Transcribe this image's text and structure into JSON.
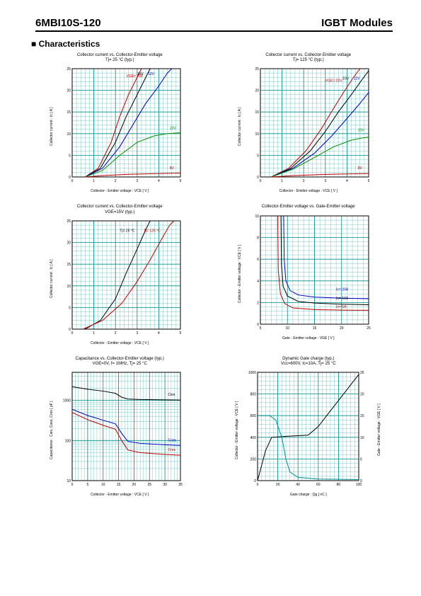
{
  "header": {
    "part": "6MBI10S-120",
    "module": "IGBT Modules"
  },
  "section": "■ Characteristics",
  "plot": {
    "w": 195,
    "h": 175
  },
  "colors": {
    "red": "#c00000",
    "blue": "#0000c0",
    "black": "#000000",
    "green": "#009000",
    "teal": "#009090"
  },
  "charts": [
    {
      "id": "c1",
      "title": "Collector current  vs.  Collector-Emitter voltage",
      "subtitle": "Tj= 25 °C  (typ.)",
      "xlabel": "Collector - Emitter voltage : VCE  [ V ]",
      "ylabel": "Collector current : Ic  [ A ]",
      "xlim": [
        0,
        5
      ],
      "ylim": [
        0,
        25
      ],
      "xmaj": 1,
      "ymaj": 5,
      "xmin": 0.2,
      "ymin": 1,
      "series": [
        {
          "c": "red",
          "pts": [
            [
              0.6,
              0
            ],
            [
              1.2,
              2
            ],
            [
              1.8,
              8
            ],
            [
              2.2,
              14
            ],
            [
              2.6,
              19
            ],
            [
              3.0,
              23
            ],
            [
              3.2,
              25
            ]
          ],
          "lab": "VGE= 20V",
          "lx": 2.5,
          "ly": 23
        },
        {
          "c": "black",
          "pts": [
            [
              0.6,
              0
            ],
            [
              1.3,
              2
            ],
            [
              2.0,
              8
            ],
            [
              2.5,
              14
            ],
            [
              3.0,
              19
            ],
            [
              3.4,
              23
            ],
            [
              3.6,
              25
            ]
          ],
          "lab": "15V",
          "lx": 3.0,
          "ly": 23.5
        },
        {
          "c": "blue",
          "pts": [
            [
              0.6,
              0
            ],
            [
              1.4,
              2
            ],
            [
              2.2,
              7
            ],
            [
              2.8,
              12
            ],
            [
              3.4,
              17
            ],
            [
              4.0,
              21
            ],
            [
              4.4,
              24
            ],
            [
              4.6,
              25
            ]
          ],
          "lab": "12V",
          "lx": 3.5,
          "ly": 23.5
        },
        {
          "c": "green",
          "pts": [
            [
              0.6,
              0
            ],
            [
              1.4,
              1.5
            ],
            [
              2.2,
              5
            ],
            [
              3.0,
              8
            ],
            [
              3.8,
              9.5
            ],
            [
              4.4,
              10
            ],
            [
              5.0,
              10.2
            ]
          ],
          "lab": "10V",
          "lx": 4.5,
          "ly": 11
        },
        {
          "c": "red",
          "pts": [
            [
              0.6,
              0
            ],
            [
              1.4,
              0.3
            ],
            [
              2.5,
              0.6
            ],
            [
              4.0,
              0.8
            ],
            [
              5.0,
              0.9
            ]
          ],
          "lab": "8V",
          "lx": 4.5,
          "ly": 1.8
        }
      ]
    },
    {
      "id": "c2",
      "title": "Collector current  vs.  Collector-Emitter voltage",
      "subtitle": "Tj= 125 °C  (typ.)",
      "xlabel": "Collector - Emitter voltage : VCE  [ V ]",
      "ylabel": "Collector current : Ic  [ A ]",
      "xlim": [
        0,
        5
      ],
      "ylim": [
        0,
        25
      ],
      "xmaj": 1,
      "ymaj": 5,
      "xmin": 0.2,
      "ymin": 1,
      "series": [
        {
          "c": "red",
          "pts": [
            [
              0.5,
              0
            ],
            [
              1.3,
              2
            ],
            [
              2.1,
              6
            ],
            [
              2.8,
              11
            ],
            [
              3.4,
              16
            ],
            [
              3.9,
              20
            ],
            [
              4.3,
              23
            ],
            [
              4.6,
              25
            ]
          ],
          "lab": "VGE= 20V",
          "lx": 3.0,
          "ly": 22
        },
        {
          "c": "black",
          "pts": [
            [
              0.5,
              0
            ],
            [
              1.4,
              2
            ],
            [
              2.3,
              6
            ],
            [
              3.0,
              10.5
            ],
            [
              3.6,
              15
            ],
            [
              4.2,
              19
            ],
            [
              4.7,
              22.5
            ],
            [
              5.0,
              24.5
            ]
          ],
          "lab": "15V",
          "lx": 3.8,
          "ly": 22.5
        },
        {
          "c": "blue",
          "pts": [
            [
              0.5,
              0
            ],
            [
              1.5,
              2
            ],
            [
              2.5,
              5.5
            ],
            [
              3.3,
              9.5
            ],
            [
              4.0,
              13.5
            ],
            [
              4.6,
              17
            ],
            [
              5.0,
              19.5
            ]
          ],
          "lab": "12V",
          "lx": 4.3,
          "ly": 22.5
        },
        {
          "c": "green",
          "pts": [
            [
              0.5,
              0
            ],
            [
              1.5,
              1.8
            ],
            [
              2.5,
              4.5
            ],
            [
              3.4,
              7
            ],
            [
              4.2,
              8.5
            ],
            [
              4.7,
              9
            ],
            [
              5.0,
              9.2
            ]
          ],
          "lab": "10V",
          "lx": 4.5,
          "ly": 10.5
        },
        {
          "c": "red",
          "pts": [
            [
              0.5,
              0
            ],
            [
              1.5,
              0.3
            ],
            [
              3.0,
              0.6
            ],
            [
              5.0,
              0.8
            ]
          ],
          "lab": "8V",
          "lx": 4.5,
          "ly": 1.8
        }
      ]
    },
    {
      "id": "c3",
      "title": "Collector current  vs.  Collector-Emitter voltage",
      "subtitle": "VGE=15V  (typ.)",
      "xlabel": "Collector - Emitter voltage : VCE  [ V ]",
      "ylabel": "Collector current : Ic  [ A ]",
      "xlim": [
        0,
        5
      ],
      "ylim": [
        0,
        25
      ],
      "xmaj": 1,
      "ymaj": 5,
      "xmin": 0.2,
      "ymin": 1,
      "series": [
        {
          "c": "black",
          "pts": [
            [
              0.6,
              0
            ],
            [
              1.3,
              2
            ],
            [
              2.0,
              7
            ],
            [
              2.5,
              13
            ],
            [
              3.0,
              18.5
            ],
            [
              3.4,
              23
            ],
            [
              3.6,
              25
            ]
          ],
          "lab": "Tj= 25 °C",
          "lx": 2.2,
          "ly": 22.5
        },
        {
          "c": "red",
          "pts": [
            [
              0.5,
              0
            ],
            [
              1.4,
              2
            ],
            [
              2.3,
              6
            ],
            [
              3.0,
              11
            ],
            [
              3.6,
              16
            ],
            [
              4.1,
              20.5
            ],
            [
              4.5,
              24
            ],
            [
              4.7,
              25
            ]
          ],
          "lab": "Tj= 125 °C",
          "lx": 3.3,
          "ly": 22.5
        }
      ]
    },
    {
      "id": "c4",
      "title": "Collector-Emitter voltage  vs.  Gate-Emitter voltage",
      "subtitle": "",
      "xlabel": "Gate - Emitter voltage : VGE  [ V ]",
      "ylabel": "Collector - Emitter voltage : VCE  [ V ]",
      "xlim": [
        5,
        25
      ],
      "ylim": [
        0,
        10
      ],
      "xmaj": 5,
      "ymaj": 2,
      "xmin": 1,
      "ymin": 0.4,
      "series": [
        {
          "c": "blue",
          "pts": [
            [
              9.3,
              10
            ],
            [
              9.4,
              6
            ],
            [
              9.7,
              4
            ],
            [
              10.5,
              3.1
            ],
            [
              12,
              2.7
            ],
            [
              15,
              2.5
            ],
            [
              20,
              2.4
            ],
            [
              25,
              2.35
            ]
          ],
          "lab": "Ic= 20A",
          "lx": 19,
          "ly": 3.1
        },
        {
          "c": "black",
          "pts": [
            [
              8.8,
              10
            ],
            [
              8.9,
              5.5
            ],
            [
              9.2,
              3.5
            ],
            [
              10,
              2.6
            ],
            [
              12,
              2.1
            ],
            [
              15,
              1.95
            ],
            [
              20,
              1.85
            ],
            [
              25,
              1.8
            ]
          ],
          "lab": "Ic= 10A",
          "lx": 19,
          "ly": 2.3
        },
        {
          "c": "red",
          "pts": [
            [
              8.2,
              10
            ],
            [
              8.3,
              5
            ],
            [
              8.7,
              2.8
            ],
            [
              9.5,
              1.9
            ],
            [
              11,
              1.5
            ],
            [
              15,
              1.35
            ],
            [
              20,
              1.3
            ],
            [
              25,
              1.28
            ]
          ],
          "lab": "Ic= 5A",
          "lx": 19,
          "ly": 1.5
        }
      ]
    },
    {
      "id": "c5",
      "title": "Capacitance  vs.  Collector-Emitter voltage  (typ.)",
      "subtitle": "VGE=0V,  f= 1MHz,  Tj= 25 °C",
      "xlabel": "Collector - Emitter voltage : VCE  [ V ]",
      "ylabel": "Capacitance : Cies, Coes, Cres  [ pF ]",
      "xlim": [
        0,
        35
      ],
      "ylim": [
        10,
        5000
      ],
      "logy": true,
      "xmaj": 5,
      "xmin": 1,
      "series": [
        {
          "c": "black",
          "pts": [
            [
              0,
              2200
            ],
            [
              5,
              1900
            ],
            [
              10,
              1700
            ],
            [
              14,
              1500
            ],
            [
              16,
              1200
            ],
            [
              18,
              1080
            ],
            [
              22,
              1050
            ],
            [
              30,
              1030
            ],
            [
              35,
              1020
            ]
          ],
          "lab": "Cies",
          "lx": 31,
          "ly": 1300
        },
        {
          "c": "blue",
          "pts": [
            [
              0,
              600
            ],
            [
              5,
              420
            ],
            [
              10,
              320
            ],
            [
              14,
              260
            ],
            [
              16,
              150
            ],
            [
              18,
              95
            ],
            [
              22,
              85
            ],
            [
              30,
              78
            ],
            [
              35,
              75
            ]
          ],
          "lab": "Coes",
          "lx": 31,
          "ly": 95
        },
        {
          "c": "red",
          "pts": [
            [
              0,
              500
            ],
            [
              5,
              330
            ],
            [
              10,
              240
            ],
            [
              14,
              190
            ],
            [
              16,
              100
            ],
            [
              18,
              58
            ],
            [
              22,
              50
            ],
            [
              30,
              45
            ],
            [
              35,
              43
            ]
          ],
          "lab": "Cres",
          "lx": 31,
          "ly": 55
        }
      ]
    },
    {
      "id": "c6",
      "title": "Dynamic Gate charge  (typ.)",
      "subtitle": "Vcc=600V,  Ic=10A,  Tj= 25 °C",
      "xlabel": "Gate charge : Qg  [ nC ]",
      "ylabel": "Collector - Emitter voltage : VCE  [ V ]",
      "ylabel2": "Gate - Emitter voltage : VGE  [ V ]",
      "xlim": [
        0,
        100
      ],
      "ylim": [
        0,
        1000
      ],
      "y2lim": [
        0,
        25
      ],
      "xmaj": 20,
      "ymaj": 200,
      "y2maj": 5,
      "xmin": 4,
      "ymin": 40,
      "series": [
        {
          "c": "black",
          "pts": [
            [
              0,
              0
            ],
            [
              8,
              280
            ],
            [
              14,
              400
            ],
            [
              30,
              410
            ],
            [
              50,
              420
            ],
            [
              60,
              500
            ],
            [
              75,
              680
            ],
            [
              90,
              860
            ],
            [
              100,
              980
            ]
          ],
          "lab": "",
          "axis": "y2label_VGE_line"
        },
        {
          "c": "teal",
          "pts": [
            [
              0,
              600
            ],
            [
              12,
              600
            ],
            [
              18,
              560
            ],
            [
              24,
              400
            ],
            [
              28,
              200
            ],
            [
              32,
              80
            ],
            [
              40,
              30
            ],
            [
              60,
              15
            ],
            [
              100,
              10
            ]
          ],
          "lab": ""
        }
      ]
    }
  ]
}
